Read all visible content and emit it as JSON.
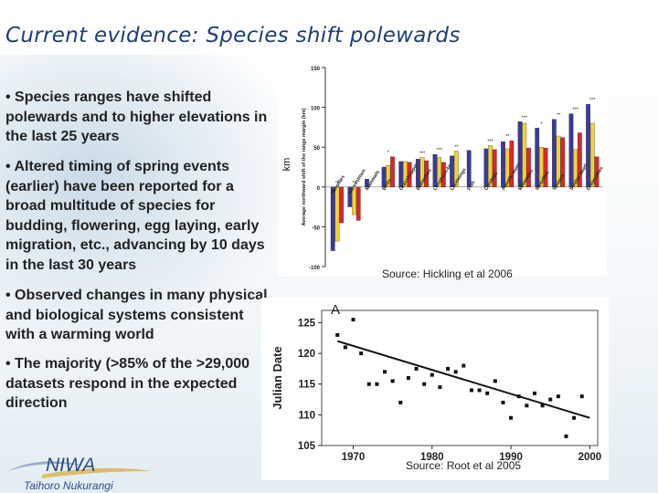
{
  "slide": {
    "title": "Current evidence: Species shift polewards",
    "bullets": [
      "• Species ranges have shifted polewards and to higher elevations in the last 25 years",
      "• Altered timing of spring events (earlier) have been reported for a broad multitude of species for budding, flowering, egg laying, early migration, etc., advancing by 10 days in the last 30 years",
      "• Observed changes in many physical and biological systems consistent with a warming world",
      "• The majority (>85% of the >29,000 datasets respond in the expected direction"
    ],
    "source1": "Source: Hickling et al 2006",
    "source2": "Source: Root et al 2005",
    "logo_name": "NIWA",
    "logo_tagline": "Taihoro Nukurangi"
  },
  "chart_data": [
    {
      "type": "bar",
      "ylabel": "Average northward shift of the range margin (km)",
      "ylabel_extra": "km",
      "ylim": [
        -100,
        150
      ],
      "yticks": [
        -100,
        -50,
        0,
        50,
        100,
        150
      ],
      "colors": [
        "#3a3a9c",
        "#f2d233",
        "#d8282a"
      ],
      "categories": [
        "Herptiles",
        "Harvestmen",
        "Mammals",
        "Birds",
        "Grasshoppers",
        "Butterflies",
        "Longhorn-beetles",
        "Lacewings",
        "Fish",
        "Carabids",
        "Aquatic-bugs",
        "Millipedes",
        "Woodlice",
        "Spiders",
        "Soldier-beetles",
        "Dragonflies"
      ],
      "values": [
        [
          -80,
          -68,
          -45
        ],
        [
          -25,
          -35,
          -42
        ],
        [
          10,
          null,
          null
        ],
        [
          25,
          27,
          38
        ],
        [
          32,
          32,
          31
        ],
        [
          35,
          37,
          33
        ],
        [
          41,
          37,
          31
        ],
        [
          39,
          45,
          null
        ],
        [
          46,
          null,
          null
        ],
        [
          48,
          52,
          47
        ],
        [
          57,
          48,
          58
        ],
        [
          82,
          80,
          49
        ],
        [
          74,
          50,
          49
        ],
        [
          85,
          64,
          62
        ],
        [
          92,
          47,
          68
        ],
        [
          104,
          80,
          38
        ]
      ],
      "significance": [
        "**",
        "**",
        "",
        "*",
        "",
        "***",
        "***",
        "**",
        "",
        "***",
        "**",
        "***",
        "*",
        "**",
        "***",
        "***"
      ]
    },
    {
      "type": "scatter",
      "panel_label": "A",
      "ylabel": "Julian Date",
      "xlim": [
        1966,
        2001
      ],
      "ylim": [
        105,
        127
      ],
      "xticks": [
        1970,
        1980,
        1990,
        2000
      ],
      "yticks": [
        105,
        110,
        115,
        120,
        125
      ],
      "x": [
        1968,
        1969,
        1970,
        1971,
        1972,
        1973,
        1974,
        1975,
        1976,
        1977,
        1978,
        1979,
        1980,
        1981,
        1982,
        1983,
        1984,
        1985,
        1986,
        1987,
        1988,
        1989,
        1990,
        1991,
        1992,
        1993,
        1994,
        1995,
        1996,
        1997,
        1998,
        1999,
        2000
      ],
      "y": [
        123,
        121,
        125.5,
        120,
        115,
        115,
        117,
        115.5,
        112,
        116,
        117.5,
        115,
        116.5,
        114.5,
        117.5,
        117,
        118,
        114,
        114,
        113.5,
        115.5,
        112,
        109.5,
        113,
        111.5,
        113.5,
        111.5,
        112.5,
        113,
        106.5,
        109.5,
        113,
        null
      ],
      "trend": [
        [
          1968,
          122
        ],
        [
          2000,
          109.5
        ]
      ]
    }
  ]
}
